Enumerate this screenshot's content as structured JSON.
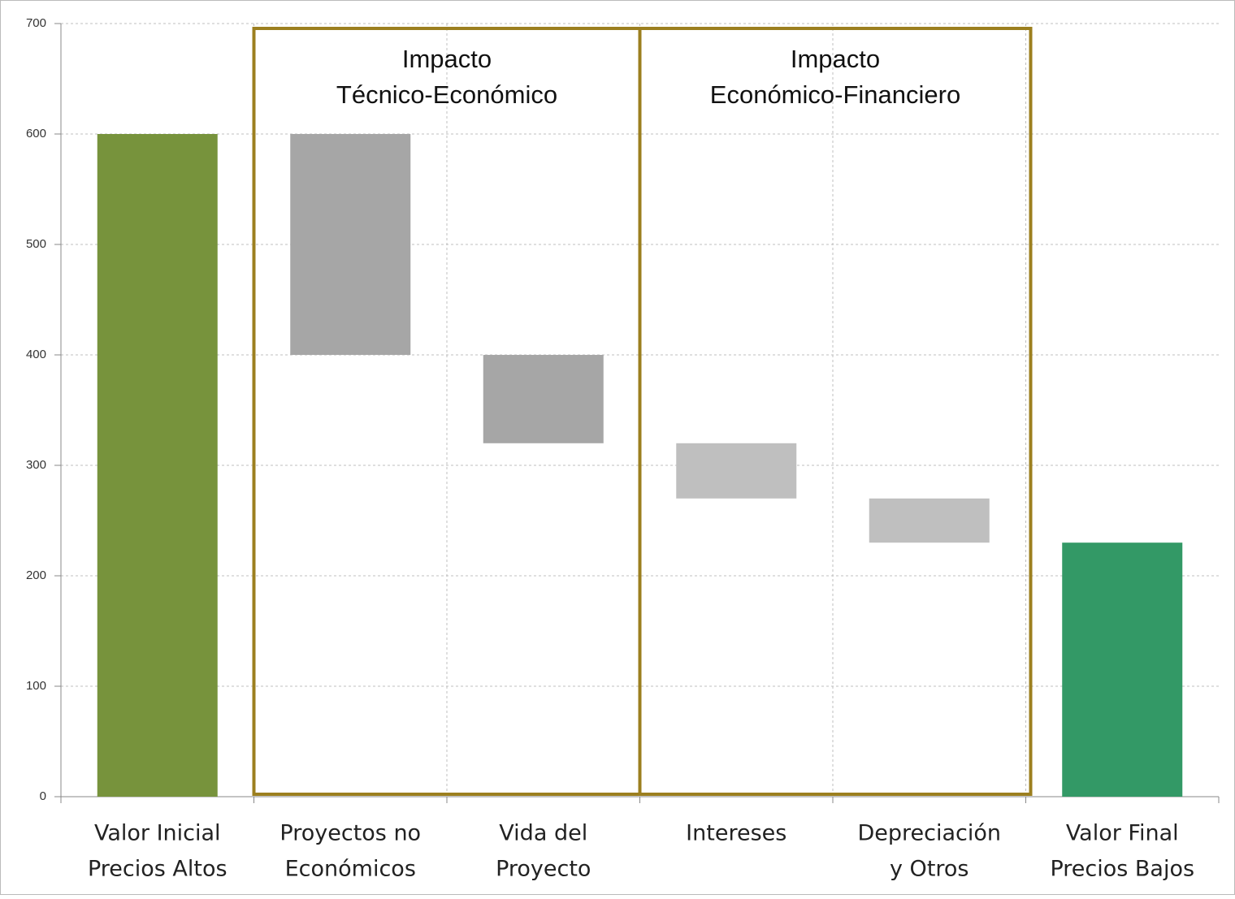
{
  "chart_data": {
    "type": "waterfall",
    "categories": [
      [
        "Valor Inicial",
        "Precios Altos"
      ],
      [
        "Proyectos no",
        "Económicos"
      ],
      [
        "Vida del",
        "Proyecto"
      ],
      [
        "Intereses"
      ],
      [
        "Depreciación",
        "y Otros"
      ],
      [
        "Valor Final",
        "Precios Bajos"
      ]
    ],
    "values": [
      600,
      -200,
      -80,
      -50,
      -40,
      230
    ],
    "colors": [
      "#77933c",
      "#a6a6a6",
      "#a6a6a6",
      "#bfbfbf",
      "#bfbfbf",
      "#339966"
    ],
    "ylim": [
      0,
      700
    ],
    "yticks": [
      0,
      100,
      200,
      300,
      400,
      500,
      600,
      700
    ],
    "grid": true,
    "annotations": [
      [
        "Impacto",
        "Técnico-Económico"
      ],
      [
        "Impacto",
        "Económico-Financiero"
      ]
    ]
  }
}
